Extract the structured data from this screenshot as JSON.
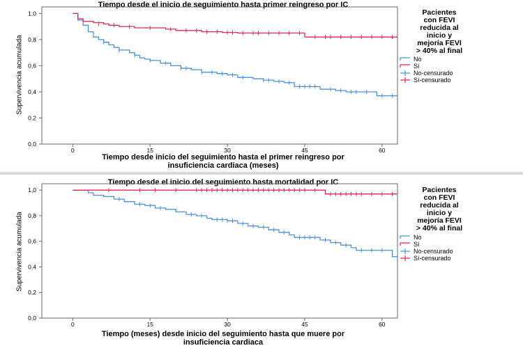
{
  "colors": {
    "no": "#4a90e2",
    "si": "#e8254e",
    "frame": "#666666"
  },
  "chart_data": [
    {
      "type": "line",
      "title": "Tiempo desde el inicio de seguimiento hasta primer reingreso por IC",
      "xlabel": "Tiempo desde inicio del seguimiento hasta el primer reingreso por insuficiencia cardiaca (meses)",
      "xlabel_lines": [
        "Tiempo desde inicio del seguimiento hasta el primer reingreso por",
        "insuficiencia cardiaca (meses)"
      ],
      "ylabel": "Supervivencia acumulada",
      "xlim": [
        -6,
        63
      ],
      "ylim": [
        0,
        1.05
      ],
      "xticks": [
        0,
        15,
        30,
        45,
        60
      ],
      "xtick_labels": [
        "0",
        "15",
        "30",
        "45",
        "60"
      ],
      "yticks": [
        0,
        0.2,
        0.4,
        0.6,
        0.8,
        1.0
      ],
      "ytick_labels": [
        "0,0",
        "0,2",
        "0,4",
        "0,6",
        "0,8",
        "1,0"
      ],
      "grid": false,
      "legend_position": "right",
      "legend_title_lines": [
        "Pacientes",
        "con FEVI",
        "reducida al",
        "inicio y",
        "mejoría FEVI",
        "> 40% al final"
      ],
      "legend_entries": [
        "No",
        "Sí",
        "No-censurado",
        "Sí-censurado"
      ],
      "series": [
        {
          "name": "No",
          "step": [
            [
              0,
              1.0
            ],
            [
              1,
              0.95
            ],
            [
              2,
              0.91
            ],
            [
              3,
              0.86
            ],
            [
              4,
              0.82
            ],
            [
              5,
              0.8
            ],
            [
              6,
              0.78
            ],
            [
              7,
              0.76
            ],
            [
              8,
              0.74
            ],
            [
              9,
              0.72
            ],
            [
              11,
              0.7
            ],
            [
              12,
              0.68
            ],
            [
              13,
              0.66
            ],
            [
              14,
              0.65
            ],
            [
              15,
              0.64
            ],
            [
              17,
              0.62
            ],
            [
              19,
              0.6
            ],
            [
              21,
              0.58
            ],
            [
              23,
              0.57
            ],
            [
              25,
              0.55
            ],
            [
              28,
              0.54
            ],
            [
              30,
              0.53
            ],
            [
              32,
              0.51
            ],
            [
              35,
              0.5
            ],
            [
              37,
              0.49
            ],
            [
              39,
              0.48
            ],
            [
              41,
              0.47
            ],
            [
              43,
              0.44
            ],
            [
              48,
              0.42
            ],
            [
              51,
              0.41
            ],
            [
              53,
              0.4
            ],
            [
              59,
              0.37
            ],
            [
              63,
              0.37
            ]
          ],
          "censored": [
            [
              6,
              0.78
            ],
            [
              9,
              0.72
            ],
            [
              12,
              0.68
            ],
            [
              15,
              0.64
            ],
            [
              18,
              0.62
            ],
            [
              21,
              0.58
            ],
            [
              22,
              0.58
            ],
            [
              25,
              0.55
            ],
            [
              27,
              0.55
            ],
            [
              29,
              0.54
            ],
            [
              31,
              0.53
            ],
            [
              33,
              0.51
            ],
            [
              37,
              0.49
            ],
            [
              38,
              0.49
            ],
            [
              40,
              0.48
            ],
            [
              42,
              0.47
            ],
            [
              44,
              0.44
            ],
            [
              45,
              0.44
            ],
            [
              46,
              0.44
            ],
            [
              47,
              0.44
            ],
            [
              50,
              0.42
            ],
            [
              52,
              0.41
            ],
            [
              54,
              0.4
            ],
            [
              55,
              0.4
            ],
            [
              57,
              0.4
            ],
            [
              60,
              0.37
            ],
            [
              62,
              0.37
            ]
          ]
        },
        {
          "name": "Sí",
          "step": [
            [
              0,
              1.0
            ],
            [
              1,
              0.96
            ],
            [
              2,
              0.94
            ],
            [
              4,
              0.93
            ],
            [
              6,
              0.92
            ],
            [
              7,
              0.91
            ],
            [
              9,
              0.9
            ],
            [
              12,
              0.89
            ],
            [
              18,
              0.88
            ],
            [
              20,
              0.87
            ],
            [
              25,
              0.86
            ],
            [
              29,
              0.855
            ],
            [
              32,
              0.85
            ],
            [
              45,
              0.82
            ],
            [
              63,
              0.82
            ]
          ],
          "censored": [
            [
              5,
              0.92
            ],
            [
              8,
              0.91
            ],
            [
              11,
              0.9
            ],
            [
              15,
              0.89
            ],
            [
              19,
              0.88
            ],
            [
              22,
              0.87
            ],
            [
              24,
              0.87
            ],
            [
              26,
              0.86
            ],
            [
              28,
              0.86
            ],
            [
              30,
              0.855
            ],
            [
              31,
              0.855
            ],
            [
              33,
              0.85
            ],
            [
              35,
              0.85
            ],
            [
              36,
              0.85
            ],
            [
              38,
              0.85
            ],
            [
              40,
              0.85
            ],
            [
              42,
              0.85
            ],
            [
              44,
              0.85
            ],
            [
              47,
              0.82
            ],
            [
              49,
              0.82
            ],
            [
              50,
              0.82
            ],
            [
              52,
              0.82
            ],
            [
              54,
              0.82
            ],
            [
              56,
              0.82
            ],
            [
              58,
              0.82
            ],
            [
              60,
              0.82
            ],
            [
              62,
              0.82
            ]
          ]
        }
      ]
    },
    {
      "type": "line",
      "title": "Tiempo desde el inicio del seguimiento hasta mortalidad por IC",
      "xlabel": "Tiempo (meses) desde inicio del seguimiento hasta que muere por insuficiencia cardiaca",
      "xlabel_lines": [
        "Tiempo (meses) desde inicio del seguimiento hasta que muere por",
        "insuficiencia cardiaca"
      ],
      "ylabel": "Supervivencia acumulada",
      "xlim": [
        -6,
        63
      ],
      "ylim": [
        0,
        1.05
      ],
      "xticks": [
        0,
        15,
        30,
        45,
        60
      ],
      "xtick_labels": [
        "0",
        "15",
        "30",
        "45",
        "60"
      ],
      "yticks": [
        0,
        0.2,
        0.4,
        0.6,
        0.8,
        1.0
      ],
      "ytick_labels": [
        "0,0",
        "0,2",
        "0,4",
        "0,6",
        "0,8",
        "1,0"
      ],
      "grid": false,
      "legend_position": "right",
      "legend_title_lines": [
        "Pacientes",
        "con FEVI",
        "reducida al",
        "inicio y",
        "mejoría FEVI",
        "> 40% al final"
      ],
      "legend_entries": [
        "No",
        "Sí",
        "No-censurado",
        "Sí-censurado"
      ],
      "series": [
        {
          "name": "No",
          "step": [
            [
              0,
              1.0
            ],
            [
              3,
              0.98
            ],
            [
              4,
              0.96
            ],
            [
              6,
              0.95
            ],
            [
              8,
              0.93
            ],
            [
              10,
              0.91
            ],
            [
              12,
              0.89
            ],
            [
              14,
              0.88
            ],
            [
              16,
              0.86
            ],
            [
              18,
              0.85
            ],
            [
              20,
              0.83
            ],
            [
              22,
              0.81
            ],
            [
              24,
              0.8
            ],
            [
              26,
              0.78
            ],
            [
              27,
              0.77
            ],
            [
              30,
              0.76
            ],
            [
              32,
              0.74
            ],
            [
              34,
              0.72
            ],
            [
              36,
              0.71
            ],
            [
              38,
              0.69
            ],
            [
              40,
              0.67
            ],
            [
              42,
              0.65
            ],
            [
              43,
              0.63
            ],
            [
              48,
              0.61
            ],
            [
              50,
              0.59
            ],
            [
              52,
              0.57
            ],
            [
              54,
              0.55
            ],
            [
              55,
              0.53
            ],
            [
              62,
              0.48
            ],
            [
              63,
              0.48
            ]
          ],
          "censored": [
            [
              9,
              0.93
            ],
            [
              13,
              0.89
            ],
            [
              15,
              0.88
            ],
            [
              17,
              0.86
            ],
            [
              23,
              0.81
            ],
            [
              25,
              0.8
            ],
            [
              28,
              0.77
            ],
            [
              29,
              0.77
            ],
            [
              30,
              0.76
            ],
            [
              31,
              0.76
            ],
            [
              33,
              0.74
            ],
            [
              35,
              0.72
            ],
            [
              37,
              0.71
            ],
            [
              39,
              0.69
            ],
            [
              41,
              0.67
            ],
            [
              44,
              0.63
            ],
            [
              45,
              0.63
            ],
            [
              46,
              0.63
            ],
            [
              47,
              0.63
            ],
            [
              49,
              0.61
            ],
            [
              51,
              0.59
            ],
            [
              53,
              0.57
            ],
            [
              56,
              0.53
            ],
            [
              58,
              0.53
            ],
            [
              60,
              0.53
            ]
          ]
        },
        {
          "name": "Sí",
          "step": [
            [
              0,
              1.0
            ],
            [
              49,
              0.97
            ],
            [
              63,
              0.97
            ]
          ],
          "censored": [
            [
              7,
              1.0
            ],
            [
              13,
              1.0
            ],
            [
              16,
              1.0
            ],
            [
              20,
              1.0
            ],
            [
              24,
              1.0
            ],
            [
              25,
              1.0
            ],
            [
              26,
              1.0
            ],
            [
              27,
              1.0
            ],
            [
              28,
              1.0
            ],
            [
              29,
              1.0
            ],
            [
              30,
              1.0
            ],
            [
              31,
              1.0
            ],
            [
              32,
              1.0
            ],
            [
              33,
              1.0
            ],
            [
              34,
              1.0
            ],
            [
              35,
              1.0
            ],
            [
              36,
              1.0
            ],
            [
              37,
              1.0
            ],
            [
              38,
              1.0
            ],
            [
              39,
              1.0
            ],
            [
              40,
              1.0
            ],
            [
              41,
              1.0
            ],
            [
              42,
              1.0
            ],
            [
              43,
              1.0
            ],
            [
              44,
              1.0
            ],
            [
              45,
              1.0
            ],
            [
              47,
              1.0
            ],
            [
              50,
              0.97
            ],
            [
              51,
              0.97
            ],
            [
              52,
              0.97
            ],
            [
              53,
              0.97
            ],
            [
              54,
              0.97
            ],
            [
              55,
              0.97
            ],
            [
              56,
              0.97
            ],
            [
              58,
              0.97
            ],
            [
              60,
              0.97
            ],
            [
              62,
              0.97
            ]
          ]
        }
      ]
    }
  ]
}
